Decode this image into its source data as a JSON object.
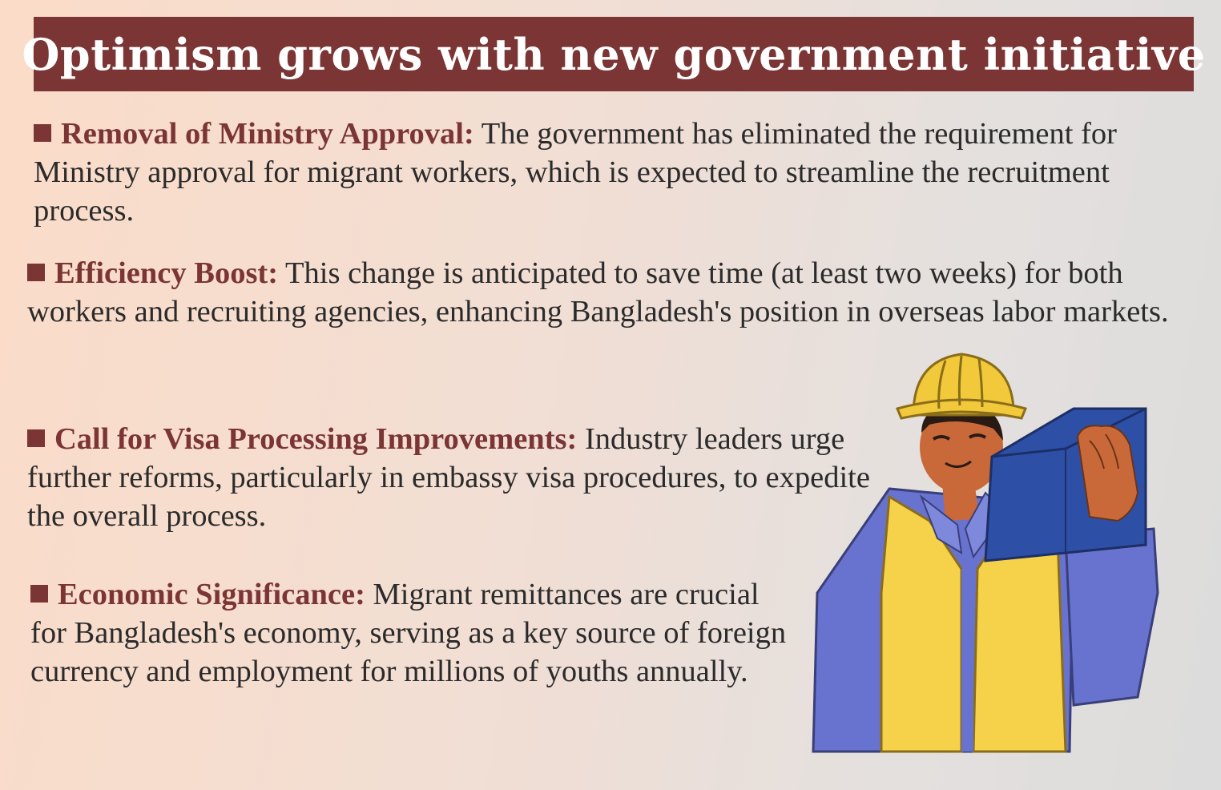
{
  "title": "Optimism grows with new government initiative",
  "points": [
    {
      "heading": "Removal of Ministry Approval:",
      "text": " The government has eliminated the requirement for Ministry approval for migrant workers, which is expected to streamline the recruitment process."
    },
    {
      "heading": "Efficiency Boost:",
      "text": " This change is anticipated to save time (at least two weeks) for both workers and recruiting agencies, enhancing Bangladesh's position in overseas labor markets."
    },
    {
      "heading": "Call for Visa Processing Improvements:",
      "text": " Industry leaders urge further reforms, particularly in embassy visa procedures, to expedite the overall process."
    },
    {
      "heading": "Economic Significance:",
      "text": " Migrant remittances are crucial for Bangladesh's economy, serving as a key source of foreign currency and employment for millions of youths annually."
    }
  ],
  "illustration": {
    "icon": "construction-worker-icon",
    "colors": {
      "helmet": "#f2c93a",
      "vest": "#f6d24a",
      "shirt": "#6873cf",
      "box": "#2e4fa6",
      "skin": "#c9693a"
    }
  },
  "colors": {
    "accent": "#7b3535",
    "text": "#2b2b2b",
    "title_text": "#ffffff"
  }
}
